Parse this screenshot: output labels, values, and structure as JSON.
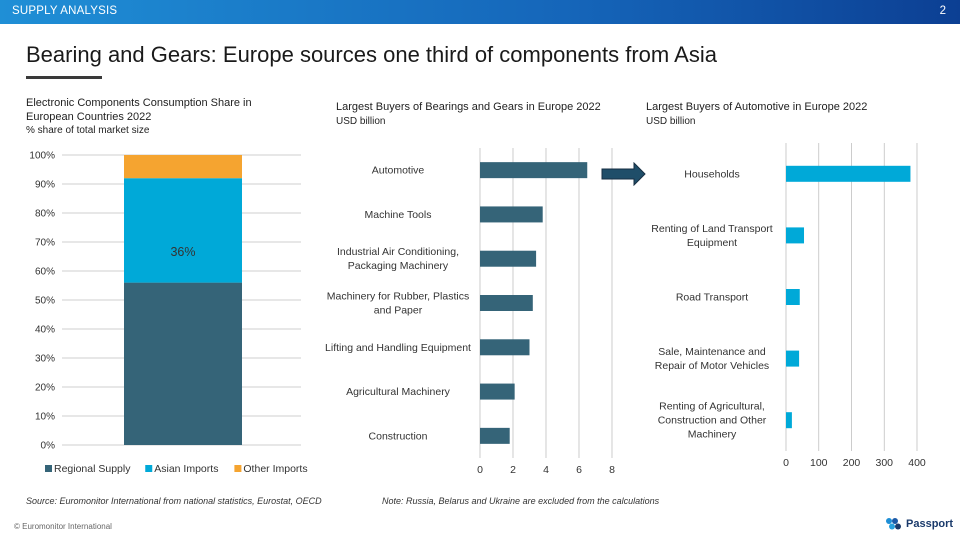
{
  "header": {
    "section": "SUPPLY ANALYSIS",
    "page_number": "2"
  },
  "title": "Bearing and Gears: Europe sources one third of components from Asia",
  "chart1": {
    "title_line1": "Electronic Components  Consumption Share in",
    "title_line2": "European Countries 2022",
    "subtitle": "% share of total market size"
  },
  "chart2": {
    "title": "Largest Buyers of Bearings and Gears in Europe 2022",
    "subtitle": "USD billion"
  },
  "chart3": {
    "title": "Largest Buyers of Automotive  in Europe 2022",
    "subtitle": "USD billion"
  },
  "footer": {
    "source": "Source: Euromonitor International from national statistics, Eurostat, OECD",
    "note": "Note: Russia, Belarus and Ukraine are excluded from the calculations",
    "copyright": "© Euromonitor  International",
    "brand": "Passport"
  },
  "colors": {
    "regional": "#356478",
    "asian": "#00a9d8",
    "other": "#f5a430",
    "arrow": "#1f4e69"
  },
  "chart_data": [
    {
      "type": "bar",
      "stacked": true,
      "orientation": "vertical",
      "categories": [
        ""
      ],
      "series": [
        {
          "name": "Regional Supply",
          "values": [
            56
          ]
        },
        {
          "name": "Asian Imports",
          "values": [
            36
          ]
        },
        {
          "name": "Other Imports",
          "values": [
            8
          ]
        }
      ],
      "data_labels": [
        "36%"
      ],
      "ylim": [
        0,
        100
      ],
      "yticks": [
        "0%",
        "10%",
        "20%",
        "30%",
        "40%",
        "50%",
        "60%",
        "70%",
        "80%",
        "90%",
        "100%"
      ],
      "legend": "bottom",
      "grid": true
    },
    {
      "type": "bar",
      "orientation": "horizontal",
      "categories": [
        "Automotive",
        "Machine Tools",
        "Industrial Air Conditioning, Packaging Machinery",
        "Machinery for Rubber, Plastics and Paper",
        "Lifting and Handling Equipment",
        "Agricultural Machinery",
        "Construction"
      ],
      "values": [
        6.5,
        3.8,
        3.4,
        3.2,
        3.0,
        2.1,
        1.8
      ],
      "xlim": [
        0,
        8
      ],
      "xticks": [
        "0",
        "2",
        "4",
        "6",
        "8"
      ],
      "grid": true
    },
    {
      "type": "bar",
      "orientation": "horizontal",
      "categories": [
        "Households",
        "Renting of Land Transport Equipment",
        "Road Transport",
        "Sale, Maintenance and Repair of Motor Vehicles",
        "Renting of Agricultural, Construction and Other Machinery"
      ],
      "values": [
        380,
        55,
        42,
        40,
        18
      ],
      "xlim": [
        0,
        400
      ],
      "xticks": [
        "0",
        "100",
        "200",
        "300",
        "400"
      ],
      "grid": true
    }
  ]
}
